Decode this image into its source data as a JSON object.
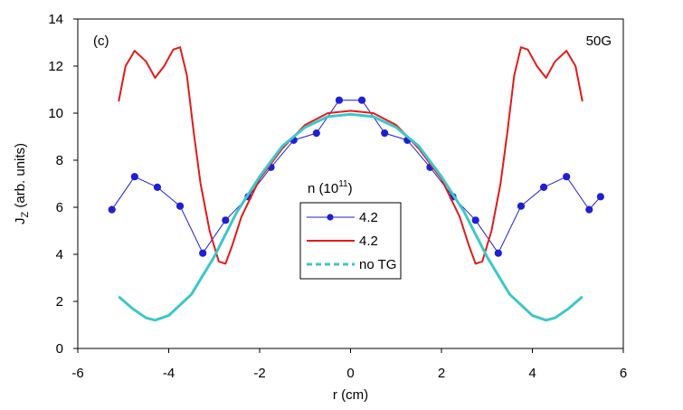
{
  "chart_data": {
    "type": "line",
    "panel_label": "(c)",
    "field_label": "50G",
    "xlabel": "r (cm)",
    "ylabel": "J",
    "ylabel_sub": "Z",
    "ylabel_unit": " (arb. units)",
    "xlim": [
      -6,
      6
    ],
    "ylim": [
      0,
      14
    ],
    "xticks": [
      -6,
      -4,
      -2,
      0,
      2,
      4,
      6
    ],
    "yticks": [
      0,
      2,
      4,
      6,
      8,
      10,
      12,
      14
    ],
    "xtick_labels": [
      "-6",
      "-4",
      "-2",
      "0",
      "2",
      "4",
      "6"
    ],
    "ytick_labels": [
      "0",
      "2",
      "4",
      "6",
      "8",
      "10",
      "12",
      "14"
    ],
    "legend": {
      "title_base": "n (10",
      "title_sup": "11",
      "title_end": ")",
      "entries": [
        "4.2",
        "4.2",
        "no TG"
      ]
    },
    "series": [
      {
        "name": "4.2",
        "color": "#1f1fd6",
        "style": "line-markers",
        "x": [
          -5.25,
          -4.75,
          -4.25,
          -3.75,
          -3.25,
          -2.75,
          -2.25,
          -1.75,
          -1.25,
          -0.75,
          -0.25,
          0.25,
          0.75,
          1.25,
          1.75,
          2.25,
          2.75,
          3.25,
          3.75,
          4.25,
          4.75,
          5.25,
          5.5
        ],
        "y": [
          5.9,
          7.3,
          6.85,
          6.05,
          4.05,
          5.45,
          6.45,
          7.7,
          8.85,
          9.15,
          10.55,
          10.55,
          9.15,
          8.85,
          7.7,
          6.45,
          5.45,
          4.05,
          6.05,
          6.85,
          7.3,
          5.9,
          6.45
        ]
      },
      {
        "name": "4.2",
        "color": "#e41a1a",
        "style": "line",
        "x": [
          -5.1,
          -4.95,
          -4.75,
          -4.5,
          -4.3,
          -4.1,
          -3.9,
          -3.75,
          -3.6,
          -3.45,
          -3.3,
          -3.1,
          -2.9,
          -2.75,
          -2.6,
          -2.4,
          -2.0,
          -1.5,
          -1.0,
          -0.5,
          0.0,
          0.5,
          1.0,
          1.5,
          2.0,
          2.4,
          2.6,
          2.75,
          2.9,
          3.1,
          3.3,
          3.45,
          3.6,
          3.75,
          3.9,
          4.1,
          4.3,
          4.5,
          4.75,
          4.95,
          5.1
        ],
        "y": [
          10.5,
          12.0,
          12.65,
          12.2,
          11.5,
          12.0,
          12.7,
          12.8,
          11.6,
          9.2,
          7.0,
          5.0,
          3.7,
          3.6,
          4.4,
          5.6,
          7.2,
          8.5,
          9.5,
          10.0,
          10.1,
          10.0,
          9.5,
          8.5,
          7.2,
          5.6,
          4.4,
          3.6,
          3.7,
          5.0,
          7.0,
          9.2,
          11.6,
          12.8,
          12.7,
          12.0,
          11.5,
          12.2,
          12.65,
          12.0,
          10.5
        ]
      },
      {
        "name": "no TG",
        "color": "#3cc8c8",
        "style": "line",
        "x": [
          -5.1,
          -4.8,
          -4.5,
          -4.3,
          -4.0,
          -3.5,
          -3.0,
          -2.5,
          -2.0,
          -1.5,
          -1.0,
          -0.5,
          0.0,
          0.5,
          1.0,
          1.5,
          2.0,
          2.5,
          3.0,
          3.5,
          4.0,
          4.3,
          4.5,
          4.8,
          5.1
        ],
        "y": [
          2.2,
          1.7,
          1.3,
          1.2,
          1.4,
          2.3,
          3.9,
          5.8,
          7.3,
          8.6,
          9.4,
          9.85,
          9.95,
          9.85,
          9.4,
          8.6,
          7.3,
          5.8,
          3.9,
          2.3,
          1.4,
          1.2,
          1.3,
          1.7,
          2.2
        ]
      }
    ]
  }
}
